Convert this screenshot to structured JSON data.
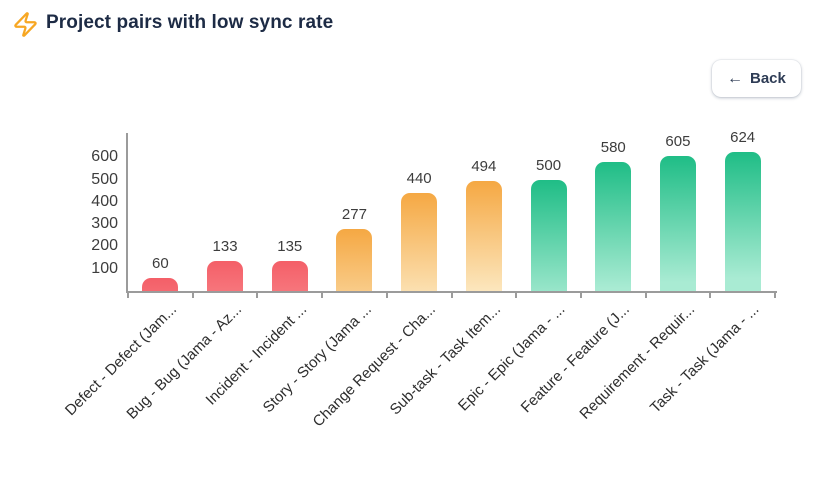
{
  "header": {
    "title": "Project pairs with low sync rate",
    "icon": "zap-icon",
    "accent_color": "#f7a723",
    "title_color": "#1d2b45"
  },
  "back_button": {
    "label": "Back",
    "arrow": "←"
  },
  "chart_data": {
    "type": "bar",
    "title": "Project pairs with low sync rate",
    "categories": [
      "Defect - Defect (Jam...",
      "Bug - Bug (Jama - Az...",
      "Incident - Incident ...",
      "Story - Story (Jama ...",
      "Change Request - Cha...",
      "Sub-task - Task Item...",
      "Epic - Epic (Jama - ...",
      "Feature - Feature (J...",
      "Requirement - Requir...",
      "Task - Task (Jama - ..."
    ],
    "values": [
      60,
      133,
      135,
      277,
      440,
      494,
      500,
      580,
      605,
      624
    ],
    "bar_groups": [
      "red",
      "red",
      "red",
      "orange",
      "orange",
      "orange",
      "green",
      "green",
      "green",
      "green"
    ],
    "colors": {
      "red": {
        "top": "#f45f68",
        "bottom": "#fdbdba"
      },
      "orange": {
        "top": "#f5a843",
        "bottom": "#fdf0d0"
      },
      "green": {
        "top": "#1fbd86",
        "bottom": "#a9ebd3"
      },
      "axis": "#9b9b9b",
      "label_text": "#3d3d3d"
    },
    "xlabel": "",
    "ylabel": "",
    "y_ticks": [
      100,
      200,
      300,
      400,
      500,
      600
    ],
    "ylim": [
      0,
      710
    ],
    "grid": false,
    "legend": "none",
    "data_labels_shown": true,
    "x_tick_rotation_deg": 45
  }
}
